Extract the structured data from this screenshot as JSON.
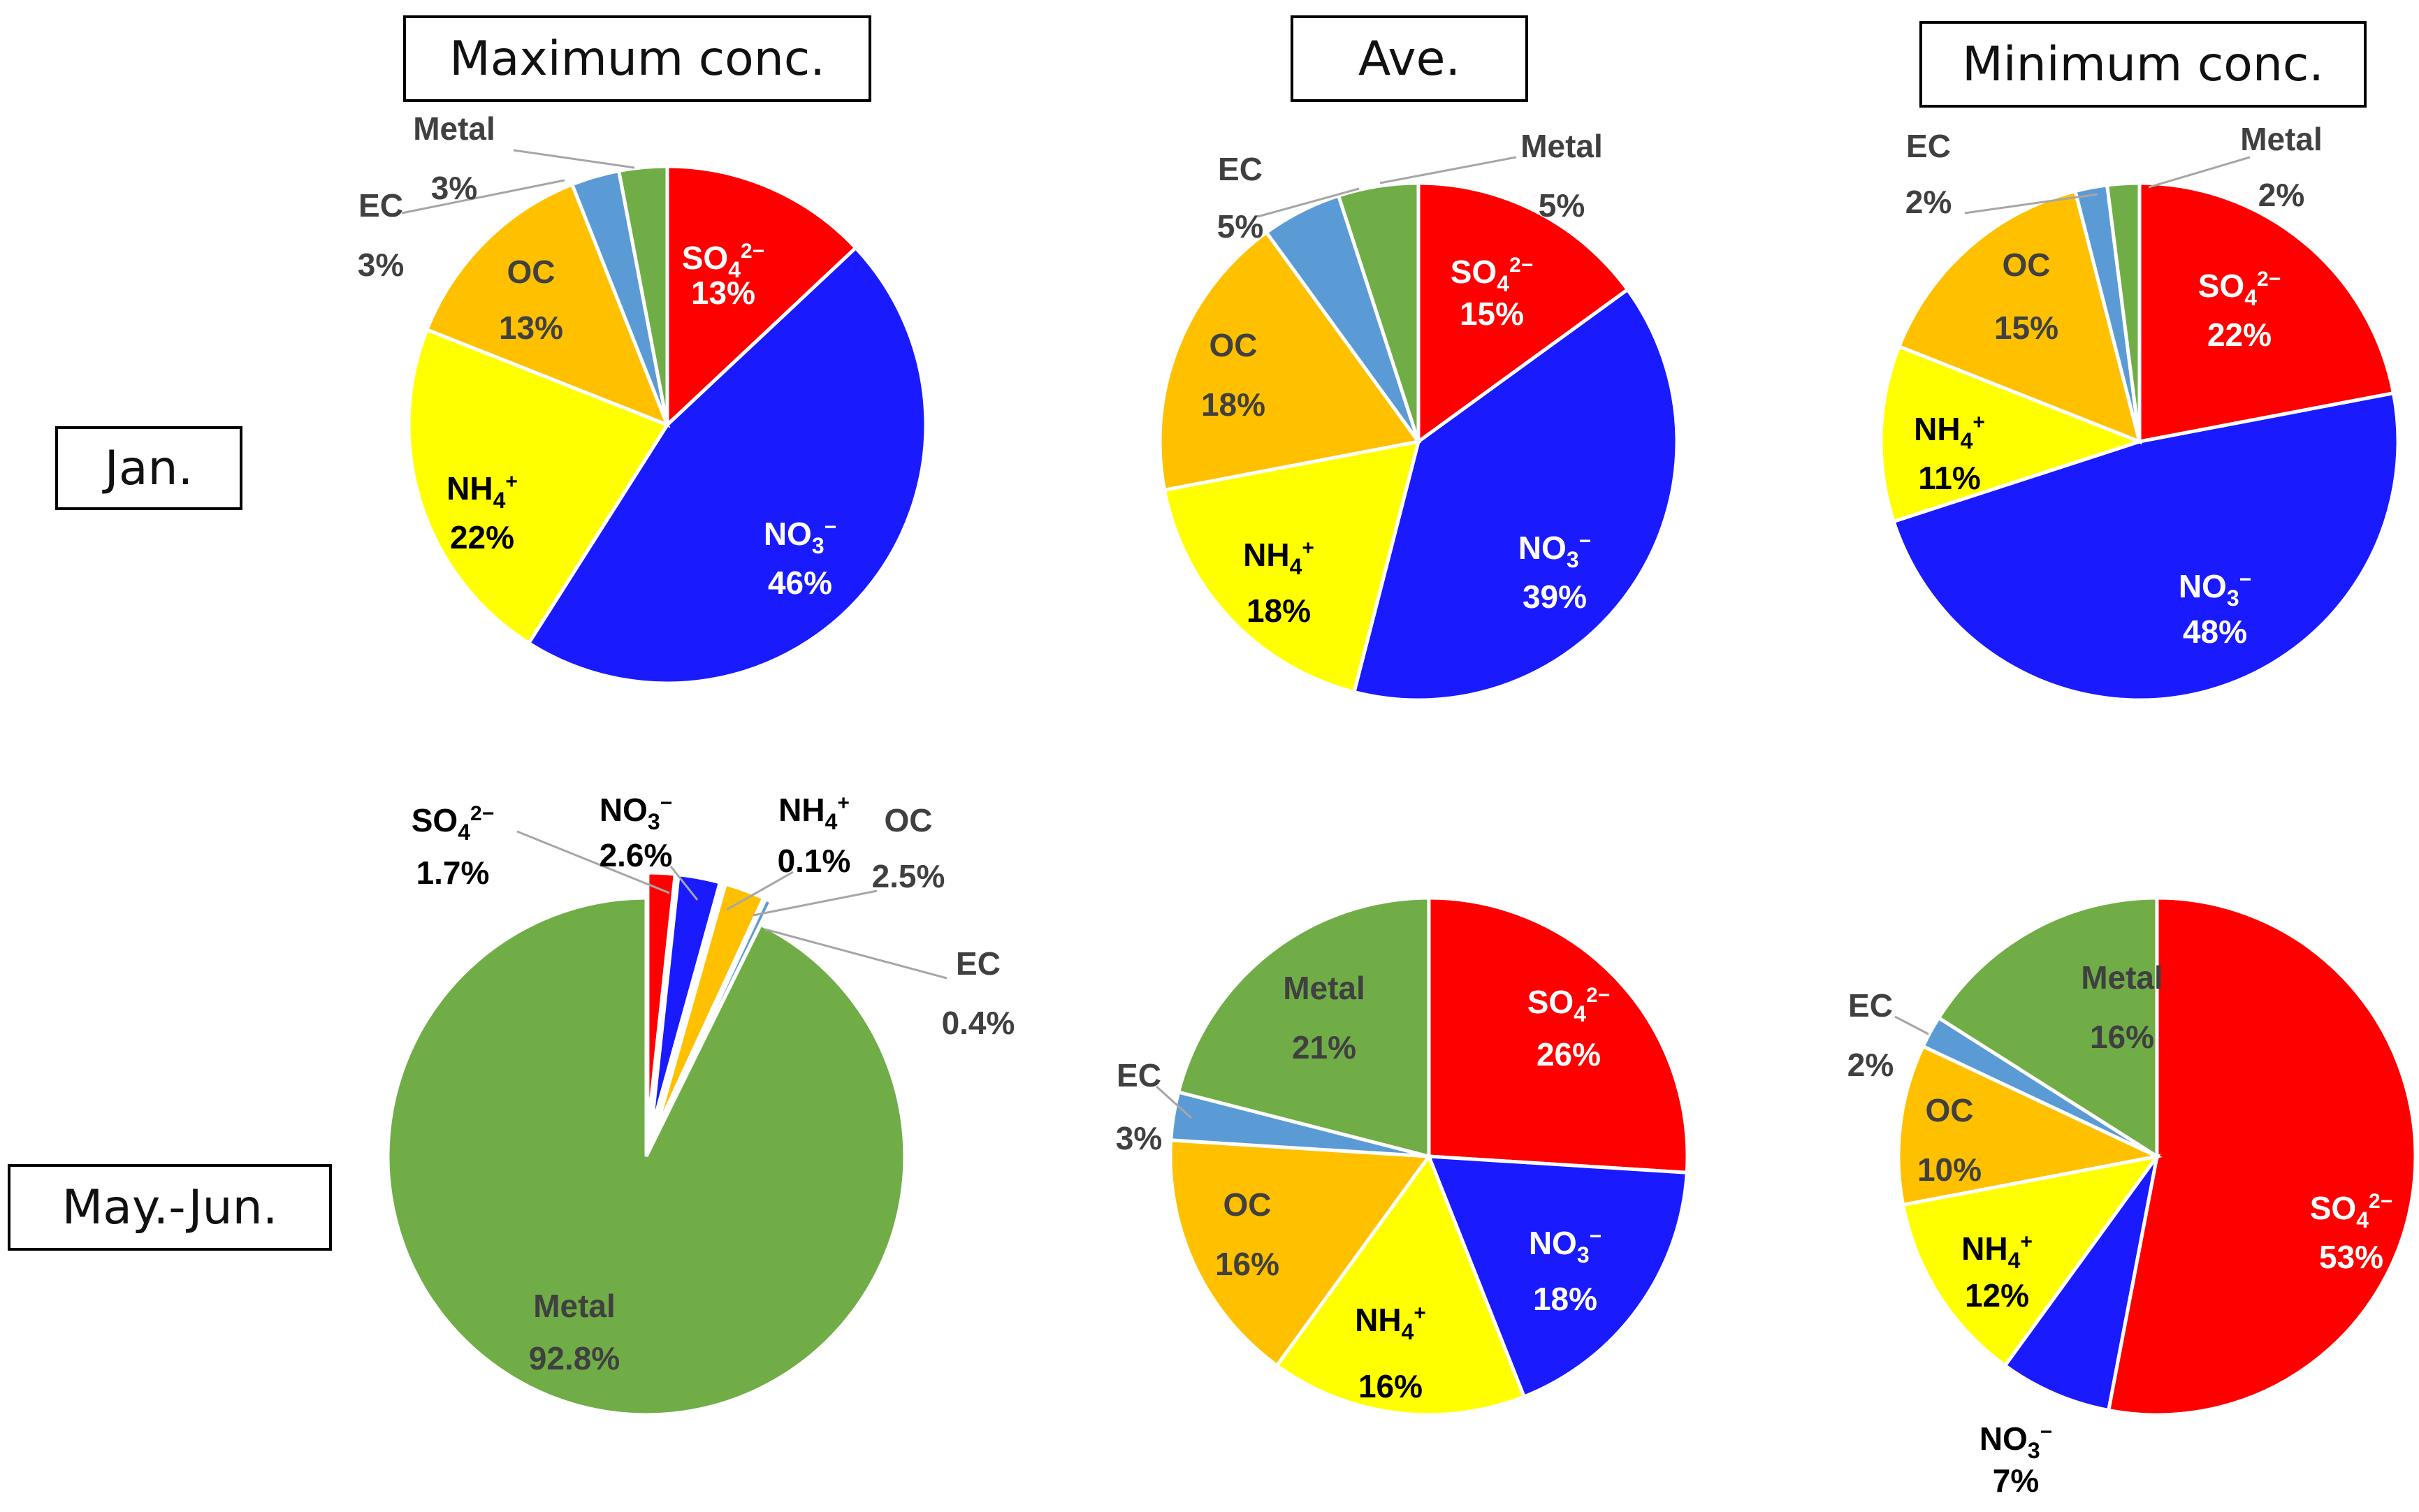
{
  "columns": [
    "Maximum conc.",
    "Ave.",
    "Minimum conc."
  ],
  "rows": [
    "Jan.",
    "May.-Jun."
  ],
  "colors": {
    "SO4": "#ff0000",
    "NO3": "#1a1aff",
    "NH4": "#ffff00",
    "OC": "#ffc000",
    "EC": "#5b9bd5",
    "Metal": "#70ad47"
  },
  "chart_data": [
    {
      "type": "pie",
      "title": "Maximum conc.",
      "period": "Jan.",
      "categories": [
        "SO4",
        "NO3",
        "NH4",
        "OC",
        "EC",
        "Metal"
      ],
      "values": [
        13,
        46,
        22,
        13,
        3,
        3
      ],
      "labels": [
        "13%",
        "46%",
        "22%",
        "13%",
        "3%",
        "3%"
      ]
    },
    {
      "type": "pie",
      "title": "Ave.",
      "period": "Jan.",
      "categories": [
        "SO4",
        "NO3",
        "NH4",
        "OC",
        "EC",
        "Metal"
      ],
      "values": [
        15,
        39,
        18,
        18,
        5,
        5
      ],
      "labels": [
        "15%",
        "39%",
        "18%",
        "18%",
        "5%",
        "5%"
      ]
    },
    {
      "type": "pie",
      "title": "Minimum conc.",
      "period": "Jan.",
      "categories": [
        "SO4",
        "NO3",
        "NH4",
        "OC",
        "EC",
        "Metal"
      ],
      "values": [
        22,
        48,
        11,
        15,
        2,
        2
      ],
      "labels": [
        "22%",
        "48%",
        "11%",
        "15%",
        "2%",
        "2%"
      ]
    },
    {
      "type": "pie",
      "title": "Maximum conc.",
      "period": "May.-Jun.",
      "categories": [
        "SO4",
        "NO3",
        "NH4",
        "OC",
        "EC",
        "Metal"
      ],
      "values": [
        1.7,
        2.6,
        0.1,
        2.5,
        0.4,
        92.8
      ],
      "labels": [
        "1.7%",
        "2.6%",
        "0.1%",
        "2.5%",
        "0.4%",
        "92.8%"
      ]
    },
    {
      "type": "pie",
      "title": "Ave.",
      "period": "May.-Jun.",
      "categories": [
        "SO4",
        "NO3",
        "NH4",
        "OC",
        "EC",
        "Metal"
      ],
      "values": [
        26,
        18,
        16,
        16,
        3,
        21
      ],
      "labels": [
        "26%",
        "18%",
        "16%",
        "16%",
        "3%",
        "21%"
      ]
    },
    {
      "type": "pie",
      "title": "Minimum conc.",
      "period": "May.-Jun.",
      "categories": [
        "SO4",
        "NO3",
        "NH4",
        "OC",
        "EC",
        "Metal"
      ],
      "values": [
        53,
        7,
        12,
        10,
        2,
        16
      ],
      "labels": [
        "53%",
        "7%",
        "12%",
        "10%",
        "2%",
        "16%"
      ]
    }
  ]
}
